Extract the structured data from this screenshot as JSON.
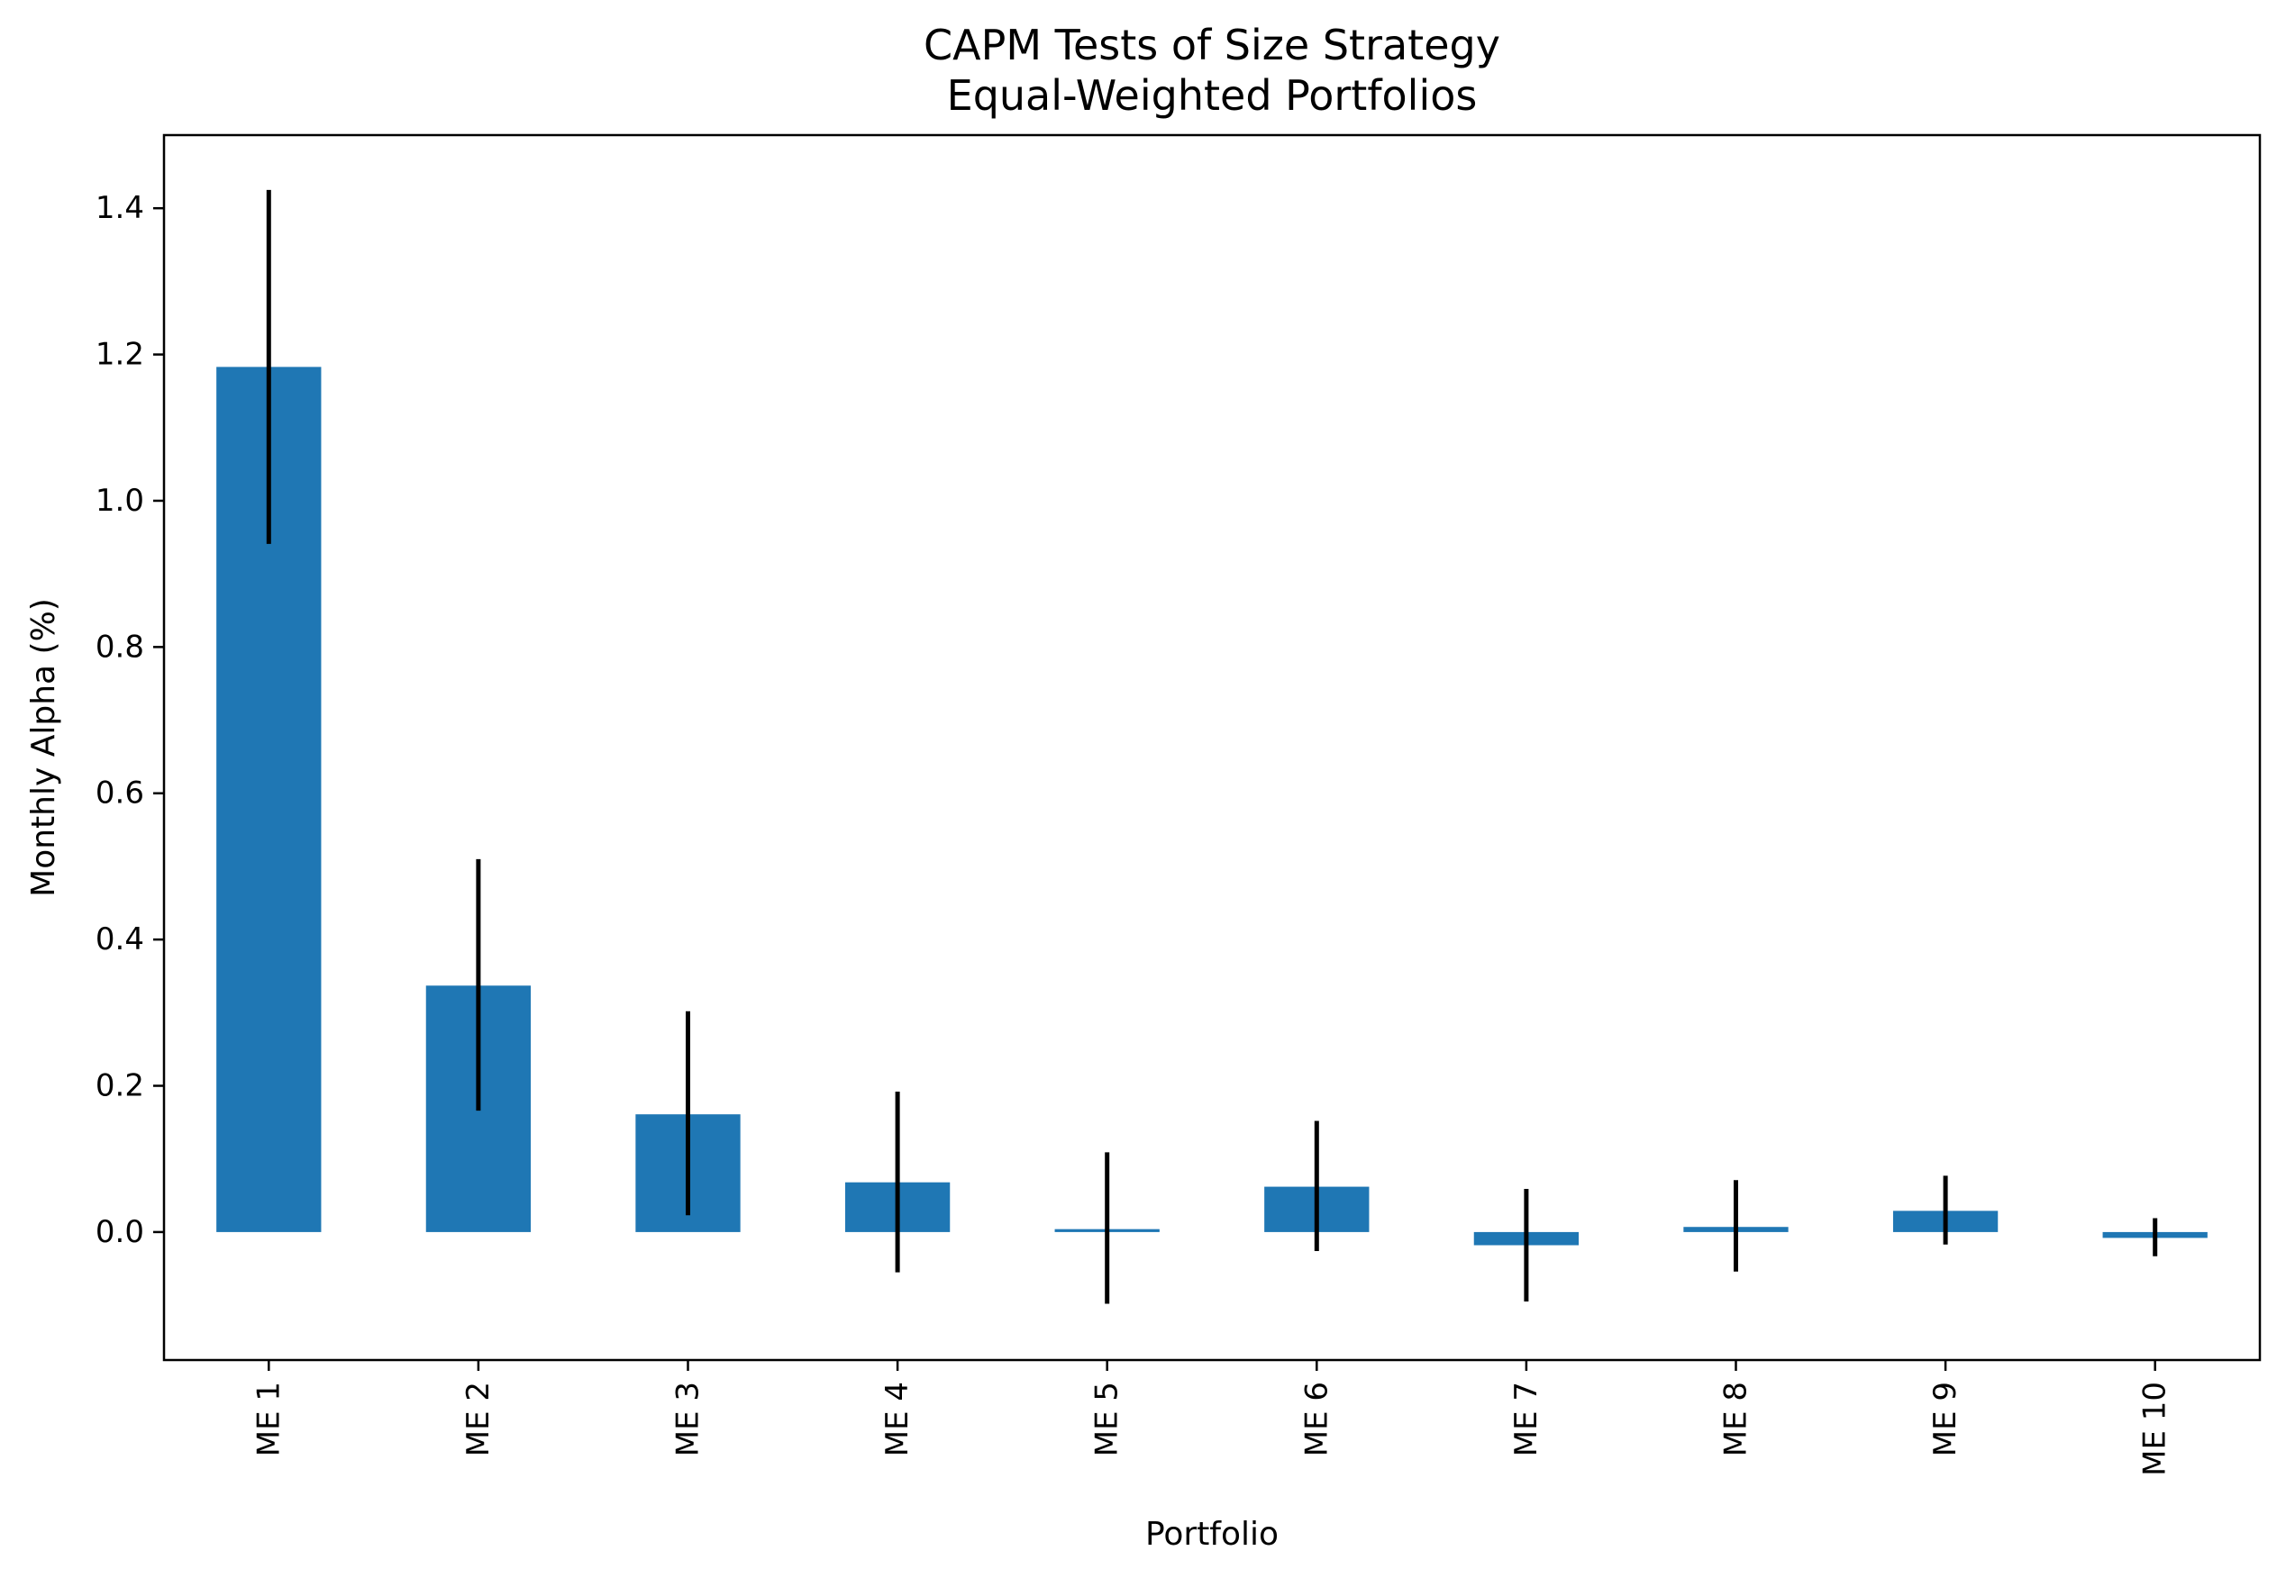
{
  "chart_data": {
    "type": "bar",
    "title": [
      "CAPM Tests of Size Strategy",
      "Equal-Weighted Portfolios"
    ],
    "xlabel": "Portfolio",
    "ylabel": "Monthly Alpha (%)",
    "categories": [
      "ME 1",
      "ME 2",
      "ME 3",
      "ME 4",
      "ME 5",
      "ME 6",
      "ME 7",
      "ME 8",
      "ME 9",
      "ME 10"
    ],
    "values": [
      1.183,
      0.337,
      0.161,
      0.068,
      0.004,
      0.062,
      -0.018,
      0.007,
      0.029,
      -0.008
    ],
    "error_low": [
      0.941,
      0.166,
      0.023,
      -0.055,
      -0.098,
      -0.026,
      -0.095,
      -0.054,
      -0.017,
      -0.033
    ],
    "error_high": [
      1.425,
      0.51,
      0.302,
      0.192,
      0.109,
      0.152,
      0.059,
      0.071,
      0.077,
      0.019
    ],
    "ylim": [
      -0.175,
      1.5
    ],
    "yticks": [
      0.0,
      0.2,
      0.4,
      0.6,
      0.8,
      1.0,
      1.2,
      1.4
    ],
    "ytick_labels": [
      "0.0",
      "0.2",
      "0.4",
      "0.6",
      "0.8",
      "1.0",
      "1.2",
      "1.4"
    ],
    "bar_color": "#1f77b4",
    "error_color": "#000000",
    "grid": false,
    "legend": "none"
  }
}
